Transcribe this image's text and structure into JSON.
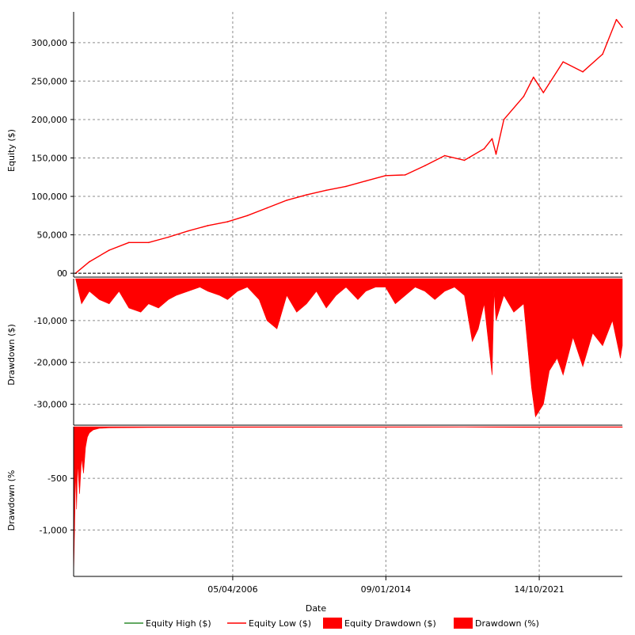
{
  "chart_data": [
    {
      "type": "line",
      "ylabel": "Equity ($)",
      "ylim": [
        -5000,
        340000
      ],
      "yticks": [
        "0",
        "50,000",
        "100,000",
        "150,000",
        "200,000",
        "250,000",
        "300,000"
      ],
      "ytick_values": [
        0,
        50000,
        100000,
        150000,
        200000,
        250000,
        300000
      ],
      "grid": true,
      "series": [
        {
          "name": "Equity Low ($)",
          "color": "#ff0000",
          "x": [
            1998.3,
            1999.0,
            2000.0,
            2001.0,
            2002.0,
            2003.0,
            2004.0,
            2005.0,
            2006.0,
            2007.0,
            2008.0,
            2009.0,
            2010.0,
            2011.0,
            2012.0,
            2013.0,
            2014.0,
            2015.0,
            2016.0,
            2017.0,
            2018.0,
            2019.0,
            2019.4,
            2019.6,
            2020.0,
            2021.0,
            2021.5,
            2022.0,
            2023.0,
            2024.0,
            2025.0,
            2025.7,
            2026.0
          ],
          "y": [
            0,
            15000,
            30000,
            40000,
            40000,
            47000,
            55000,
            62000,
            67000,
            75000,
            85000,
            95000,
            102000,
            108000,
            113000,
            120000,
            127000,
            128000,
            140000,
            153000,
            147000,
            162000,
            175000,
            155000,
            200000,
            230000,
            255000,
            235000,
            275000,
            262000,
            285000,
            330000,
            320000
          ]
        },
        {
          "name": "Equity High ($)",
          "color": "#2e8b2e",
          "x": [],
          "y": []
        }
      ]
    },
    {
      "type": "area",
      "ylabel": "Drawdown ($)",
      "ylim": [
        -35000,
        0
      ],
      "yticks": [
        "-10,000",
        "-20,000",
        "-30,000"
      ],
      "ytick_values": [
        -10000,
        -20000,
        -30000
      ],
      "grid": true,
      "series": [
        {
          "name": "Equity Drawdown ($)",
          "color": "#ff0000",
          "x": [
            1998.3,
            1998.6,
            1999.0,
            1999.5,
            2000.0,
            2000.5,
            2001.0,
            2001.6,
            2002.0,
            2002.5,
            2003.0,
            2003.4,
            2004.0,
            2004.6,
            2005.0,
            2005.6,
            2006.0,
            2006.5,
            2007.0,
            2007.6,
            2008.0,
            2008.5,
            2009.0,
            2009.5,
            2010.0,
            2010.5,
            2011.0,
            2011.5,
            2012.0,
            2012.6,
            2013.0,
            2013.5,
            2014.0,
            2014.5,
            2015.0,
            2015.5,
            2016.0,
            2016.5,
            2017.0,
            2017.5,
            2018.0,
            2018.4,
            2018.7,
            2019.0,
            2019.4,
            2019.5,
            2019.6,
            2020.0,
            2020.5,
            2021.0,
            2021.4,
            2021.6,
            2022.0,
            2022.3,
            2022.7,
            2023.0,
            2023.5,
            2024.0,
            2024.5,
            2025.0,
            2025.5,
            2025.9,
            2026.0
          ],
          "y": [
            0,
            -6000,
            -3000,
            -5000,
            -6000,
            -3000,
            -7000,
            -8000,
            -6000,
            -7000,
            -5000,
            -4000,
            -3000,
            -2000,
            -3000,
            -4000,
            -5000,
            -3000,
            -2000,
            -5000,
            -10000,
            -12000,
            -4000,
            -8000,
            -6000,
            -3000,
            -7000,
            -4000,
            -2000,
            -5000,
            -3000,
            -2000,
            -2000,
            -6000,
            -4000,
            -2000,
            -3000,
            -5000,
            -3000,
            -2000,
            -4000,
            -15000,
            -12000,
            -6000,
            -23000,
            -3000,
            -10000,
            -4000,
            -8000,
            -6000,
            -26000,
            -33000,
            -30000,
            -22000,
            -19000,
            -23000,
            -14000,
            -21000,
            -13000,
            -16000,
            -10000,
            -19000,
            -16000
          ]
        }
      ]
    },
    {
      "type": "area",
      "xlabel": "Date",
      "ylabel": "Drawdown (%",
      "ylim": [
        -1450,
        0
      ],
      "yticks": [
        "-500",
        "-1,000"
      ],
      "ytick_values": [
        -500,
        -1000
      ],
      "xticks": [
        "05/04/2006",
        "09/01/2014",
        "14/10/2021"
      ],
      "xtick_values": [
        2006.26,
        2014.02,
        2021.79
      ],
      "xlim": [
        1998.2,
        2026.0
      ],
      "grid": true,
      "series": [
        {
          "name": "Drawdown (%)",
          "color": "#ff0000",
          "x": [
            1998.2,
            1998.25,
            1998.3,
            1998.35,
            1998.4,
            1998.5,
            1998.6,
            1998.7,
            1998.8,
            1998.9,
            1999.0,
            1999.2,
            1999.5,
            2000.0,
            2002.0,
            2005.0,
            2009.0,
            2018.0,
            2021.0,
            2024.0,
            2026.0
          ],
          "y": [
            -1450,
            -1000,
            -400,
            -800,
            -350,
            -650,
            -300,
            -450,
            -200,
            -100,
            -60,
            -30,
            -15,
            -10,
            -8,
            -6,
            -5,
            -4,
            -6,
            -5,
            -5
          ]
        }
      ]
    }
  ],
  "legend": [
    {
      "label": "Equity High ($)",
      "kind": "line",
      "color": "#2e8b2e"
    },
    {
      "label": "Equity Low ($)",
      "kind": "line",
      "color": "#ff0000"
    },
    {
      "label": "Equity Drawdown ($)",
      "kind": "box",
      "color": "#ff0000"
    },
    {
      "label": "Drawdown (%)",
      "kind": "box",
      "color": "#ff0000"
    }
  ],
  "legend_position": "bottom"
}
